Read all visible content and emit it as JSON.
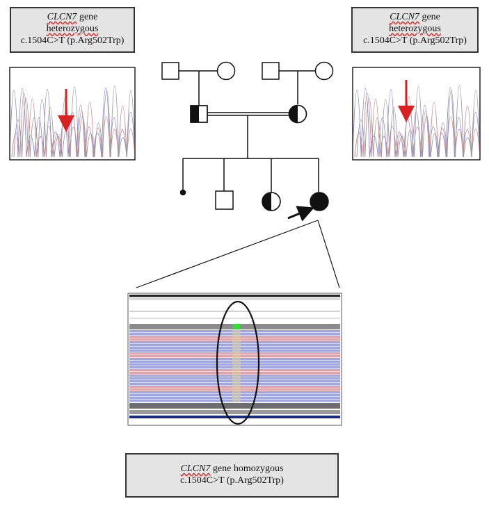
{
  "labels": {
    "top_left": {
      "gene": "CLCN7",
      "gene_suffix": " gene",
      "zygosity": "heterozygous",
      "variant": "c.1504C>T (p.Arg502Trp)"
    },
    "top_right": {
      "gene": "CLCN7",
      "gene_suffix": " gene",
      "zygosity": "heterozygous",
      "variant": "c.1504C>T (p.Arg502Trp)"
    },
    "bottom": {
      "gene": "CLCN7",
      "gene_suffix": " gene homozygous",
      "variant": "c.1504C>T (p.Arg502Trp)"
    }
  },
  "pedigree": {
    "generation_1": [
      {
        "sex": "male",
        "status": "unaffected"
      },
      {
        "sex": "female",
        "status": "unaffected"
      },
      {
        "sex": "male",
        "status": "unaffected"
      },
      {
        "sex": "female",
        "status": "unaffected"
      }
    ],
    "generation_2": [
      {
        "sex": "male",
        "status": "heterozygous carrier"
      },
      {
        "sex": "female",
        "status": "heterozygous carrier"
      }
    ],
    "consanguineous": true,
    "generation_3": [
      {
        "sex": "unknown",
        "status": "deceased early"
      },
      {
        "sex": "male",
        "status": "unaffected"
      },
      {
        "sex": "female",
        "status": "heterozygous carrier"
      },
      {
        "sex": "female",
        "status": "affected",
        "proband": true
      }
    ]
  },
  "colors": {
    "arrow_red": "#d62222",
    "read_pink": "#e8a0a8",
    "read_blue": "#9ea6e8",
    "highlight_green": "#33dd33",
    "box_fill": "#e4e4e4"
  }
}
